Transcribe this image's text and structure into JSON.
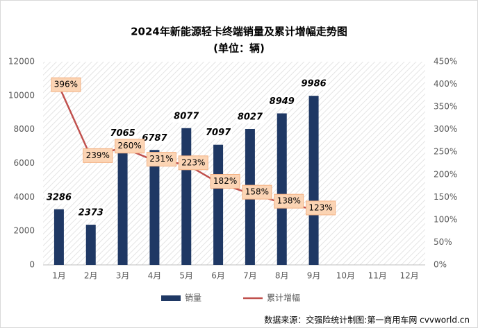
{
  "chart_data": {
    "type": "bar_line",
    "title": "2024年新能源轻卡终端销量及累计增幅走势图",
    "subtitle": "(单位：辆)",
    "categories": [
      "1月",
      "2月",
      "3月",
      "4月",
      "5月",
      "6月",
      "7月",
      "8月",
      "9月",
      "10月",
      "11月",
      "12月"
    ],
    "series": [
      {
        "name": "销量",
        "type": "bar",
        "color": "#1f3864",
        "values": [
          3286,
          2373,
          7065,
          6787,
          8077,
          7097,
          8027,
          8949,
          9986,
          null,
          null,
          null
        ]
      },
      {
        "name": "累计增幅",
        "type": "line",
        "axis": "y2",
        "color": "#c0504d",
        "values": [
          396,
          239,
          260,
          231,
          223,
          182,
          158,
          138,
          123,
          null,
          null,
          null
        ],
        "value_labels": [
          "396%",
          "239%",
          "260%",
          "231%",
          "223%",
          "182%",
          "158%",
          "138%",
          "123%",
          null,
          null,
          null
        ]
      }
    ],
    "ylim": [
      0,
      12000
    ],
    "yticks": [
      0,
      2000,
      4000,
      6000,
      8000,
      10000,
      12000
    ],
    "y2lim": [
      0,
      450
    ],
    "y2ticks": [
      {
        "value": 0,
        "label": "0%"
      },
      {
        "value": 50,
        "label": "50%"
      },
      {
        "value": 100,
        "label": "100%"
      },
      {
        "value": 150,
        "label": "150%"
      },
      {
        "value": 200,
        "label": "200%"
      },
      {
        "value": 250,
        "label": "250%"
      },
      {
        "value": 300,
        "label": "300%"
      },
      {
        "value": 350,
        "label": "350%"
      },
      {
        "value": 400,
        "label": "400%"
      },
      {
        "value": 450,
        "label": "450%"
      }
    ],
    "grid": false,
    "legend": "bottom",
    "source": "数据来源：交强险统计制图:第一商用车网 cvvworld.cn"
  }
}
